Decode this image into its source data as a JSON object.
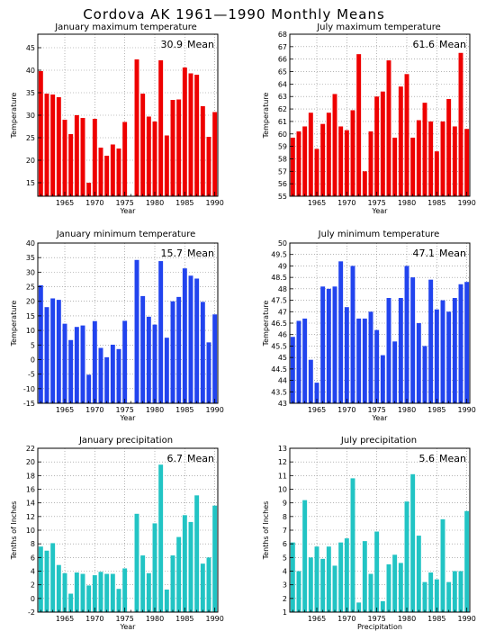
{
  "title": "Cordova AK   1961—1990 Monthly Means",
  "chart_data": [
    {
      "type": "bar",
      "title": "January maximum temperature",
      "mean_value": "30.9",
      "mean_word": "Mean",
      "xlabel": "Year",
      "ylabel": "Temperature",
      "color": "#ee0000",
      "ylim": [
        12,
        48
      ],
      "yticks": [
        15,
        20,
        25,
        30,
        35,
        40,
        45
      ],
      "xlim": [
        1960.5,
        1990.5
      ],
      "xticks": [
        1965,
        1970,
        1975,
        1980,
        1985,
        1990
      ],
      "x": [
        1961,
        1962,
        1963,
        1964,
        1965,
        1966,
        1967,
        1968,
        1969,
        1970,
        1971,
        1972,
        1973,
        1974,
        1975,
        1976,
        1977,
        1978,
        1979,
        1980,
        1981,
        1982,
        1983,
        1984,
        1985,
        1986,
        1987,
        1988,
        1989,
        1990
      ],
      "values": [
        39.8,
        34.8,
        34.6,
        34.0,
        29.0,
        25.8,
        30.0,
        29.4,
        15.0,
        29.2,
        22.8,
        21.0,
        23.5,
        22.6,
        28.5,
        null,
        42.4,
        34.8,
        29.7,
        28.6,
        42.2,
        25.5,
        33.4,
        33.5,
        40.6,
        39.3,
        39.0,
        32.0,
        25.2,
        30.7
      ]
    },
    {
      "type": "bar",
      "title": "July maximum temperature",
      "mean_value": "61.6",
      "mean_word": "Mean",
      "xlabel": "Year",
      "ylabel": "Temperature",
      "color": "#ee0000",
      "ylim": [
        55,
        68
      ],
      "yticks": [
        55,
        56,
        57,
        58,
        59,
        60,
        61,
        62,
        63,
        64,
        65,
        66,
        67,
        68
      ],
      "xlim": [
        1960.5,
        1990.5
      ],
      "xticks": [
        1965,
        1970,
        1975,
        1980,
        1985,
        1990
      ],
      "x": [
        1961,
        1962,
        1963,
        1964,
        1965,
        1966,
        1967,
        1968,
        1969,
        1970,
        1971,
        1972,
        1973,
        1974,
        1975,
        1976,
        1977,
        1978,
        1979,
        1980,
        1981,
        1982,
        1983,
        1984,
        1985,
        1986,
        1987,
        1988,
        1989,
        1990
      ],
      "values": [
        59.7,
        60.2,
        60.6,
        61.7,
        58.8,
        60.8,
        61.7,
        63.2,
        60.6,
        60.3,
        61.9,
        66.4,
        57.0,
        60.2,
        63.0,
        63.4,
        65.9,
        59.7,
        63.8,
        64.8,
        59.7,
        61.1,
        62.5,
        61.0,
        58.6,
        61.0,
        62.8,
        60.6,
        66.5,
        60.4
      ]
    },
    {
      "type": "bar",
      "title": "January minimum temperature",
      "mean_value": "15.7",
      "mean_word": "Mean",
      "xlabel": "Year",
      "ylabel": "Temperature",
      "color": "#2244ee",
      "ylim": [
        -15,
        40
      ],
      "yticks": [
        -15,
        -10,
        -5,
        0,
        5,
        10,
        15,
        20,
        25,
        30,
        35,
        40
      ],
      "xlim": [
        1960.5,
        1990.5
      ],
      "xticks": [
        1965,
        1970,
        1975,
        1980,
        1985,
        1990
      ],
      "x": [
        1961,
        1962,
        1963,
        1964,
        1965,
        1966,
        1967,
        1968,
        1969,
        1970,
        1971,
        1972,
        1973,
        1974,
        1975,
        1976,
        1977,
        1978,
        1979,
        1980,
        1981,
        1982,
        1983,
        1984,
        1985,
        1986,
        1987,
        1988,
        1989,
        1990
      ],
      "values": [
        25.5,
        18.0,
        21.0,
        20.5,
        12.3,
        6.7,
        11.2,
        11.7,
        -5.2,
        13.2,
        4.0,
        0.8,
        5.1,
        3.6,
        13.3,
        null,
        34.2,
        21.8,
        14.7,
        12.0,
        33.8,
        7.5,
        20.0,
        21.5,
        31.3,
        28.8,
        27.8,
        19.8,
        5.9,
        15.5
      ]
    },
    {
      "type": "bar",
      "title": "July minimum temperature",
      "mean_value": "47.1",
      "mean_word": "Mean",
      "xlabel": "Year",
      "ylabel": "Temperature",
      "color": "#2244ee",
      "ylim": [
        43,
        50
      ],
      "yticks": [
        43,
        43.5,
        44,
        44.5,
        45,
        45.5,
        46,
        46.5,
        47,
        47.5,
        48,
        48.5,
        49,
        49.5,
        50
      ],
      "xlim": [
        1960.5,
        1990.5
      ],
      "xticks": [
        1965,
        1970,
        1975,
        1980,
        1985,
        1990
      ],
      "x": [
        1961,
        1962,
        1963,
        1964,
        1965,
        1966,
        1967,
        1968,
        1969,
        1970,
        1971,
        1972,
        1973,
        1974,
        1975,
        1976,
        1977,
        1978,
        1979,
        1980,
        1981,
        1982,
        1983,
        1984,
        1985,
        1986,
        1987,
        1988,
        1989,
        1990
      ],
      "values": [
        45.9,
        46.6,
        46.7,
        44.9,
        43.9,
        48.1,
        48.0,
        48.1,
        49.2,
        47.2,
        49.0,
        46.7,
        46.7,
        47.0,
        46.2,
        45.1,
        47.6,
        45.7,
        47.6,
        49.0,
        48.5,
        46.5,
        45.5,
        48.4,
        47.1,
        47.5,
        47.0,
        47.6,
        48.2,
        48.3
      ]
    },
    {
      "type": "bar",
      "title": "January precipitation",
      "mean_value": "6.7",
      "mean_word": "Mean",
      "xlabel": "Year",
      "ylabel": "Tenths of Inches",
      "color": "#22c4c4",
      "ylim": [
        -2,
        22
      ],
      "yticks": [
        -2,
        0,
        2,
        4,
        6,
        8,
        10,
        12,
        14,
        16,
        18,
        20,
        22
      ],
      "xlim": [
        1960.5,
        1990.5
      ],
      "xticks": [
        1965,
        1970,
        1975,
        1980,
        1985,
        1990
      ],
      "x": [
        1961,
        1962,
        1963,
        1964,
        1965,
        1966,
        1967,
        1968,
        1969,
        1970,
        1971,
        1972,
        1973,
        1974,
        1975,
        1976,
        1977,
        1978,
        1979,
        1980,
        1981,
        1982,
        1983,
        1984,
        1985,
        1986,
        1987,
        1988,
        1989,
        1990
      ],
      "values": [
        7.6,
        7.0,
        8.1,
        4.9,
        3.7,
        0.7,
        3.8,
        3.6,
        1.9,
        3.4,
        3.9,
        3.6,
        3.6,
        1.4,
        4.4,
        null,
        12.4,
        6.3,
        3.7,
        11.0,
        19.6,
        1.3,
        6.3,
        9.0,
        12.2,
        11.2,
        15.1,
        5.1,
        6.0,
        13.6
      ]
    },
    {
      "type": "bar",
      "title": "July precipitation",
      "mean_value": "5.6",
      "mean_word": "Mean",
      "xlabel": "Precipitation",
      "ylabel": "Tenths of Inches",
      "color": "#22c4c4",
      "ylim": [
        1,
        13
      ],
      "yticks": [
        1,
        2,
        3,
        4,
        5,
        6,
        7,
        8,
        9,
        10,
        11,
        12,
        13
      ],
      "xlim": [
        1960.5,
        1990.5
      ],
      "xticks": [
        1965,
        1970,
        1975,
        1980,
        1985,
        1990
      ],
      "x": [
        1961,
        1962,
        1963,
        1964,
        1965,
        1966,
        1967,
        1968,
        1969,
        1970,
        1971,
        1972,
        1973,
        1974,
        1975,
        1976,
        1977,
        1978,
        1979,
        1980,
        1981,
        1982,
        1983,
        1984,
        1985,
        1986,
        1987,
        1988,
        1989,
        1990
      ],
      "values": [
        6.1,
        4.0,
        9.2,
        5.0,
        5.8,
        4.9,
        5.8,
        4.4,
        6.1,
        6.4,
        10.8,
        1.7,
        6.2,
        3.8,
        6.9,
        1.8,
        4.5,
        5.2,
        4.6,
        9.1,
        11.1,
        6.6,
        3.2,
        3.9,
        3.4,
        7.8,
        3.2,
        4.0,
        4.0,
        8.4
      ]
    }
  ]
}
